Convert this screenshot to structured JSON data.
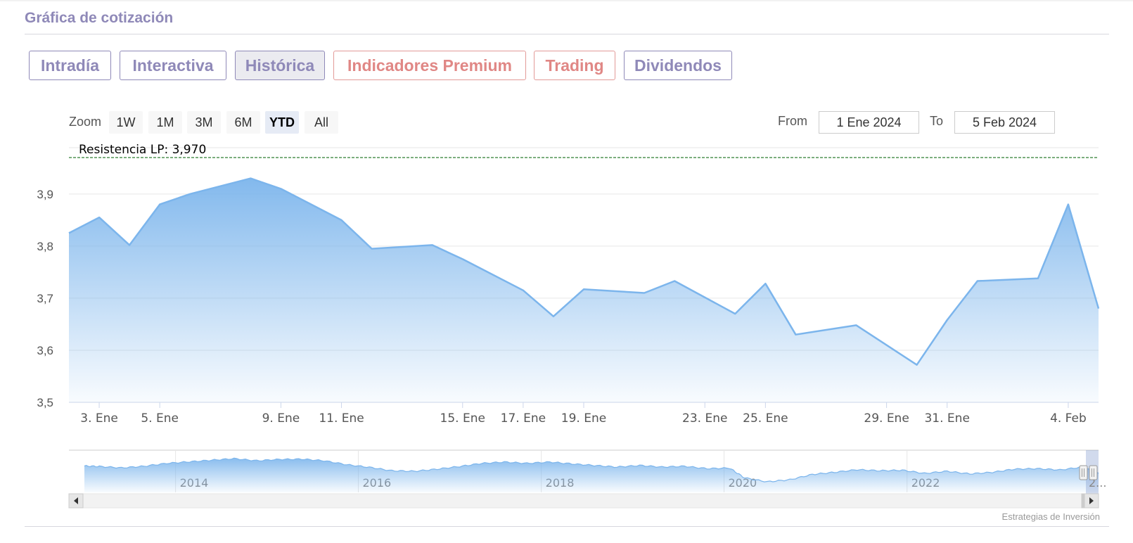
{
  "section_title": "Gráfica de cotización",
  "tabs": [
    {
      "label": "Intradía",
      "premium": false,
      "active": false
    },
    {
      "label": "Interactiva",
      "premium": false,
      "active": false
    },
    {
      "label": "Histórica",
      "premium": false,
      "active": true
    },
    {
      "label": "Indicadores Premium",
      "premium": true,
      "active": false
    },
    {
      "label": "Trading",
      "premium": true,
      "active": false
    },
    {
      "label": "Dividendos",
      "premium": false,
      "active": false
    }
  ],
  "zoom": {
    "label": "Zoom",
    "buttons": [
      "1W",
      "1M",
      "3M",
      "6M",
      "YTD",
      "All"
    ],
    "selected": "YTD"
  },
  "range": {
    "from_label": "From",
    "from_value": "1 Ene 2024",
    "to_label": "To",
    "to_value": "5 Feb 2024"
  },
  "credits": "Estrategias de Inversión",
  "colors": {
    "series": "#7cb5ec",
    "resistance": "#2e7d32",
    "tab_text": "#8f89b8",
    "premium_text": "#e08785"
  },
  "chart_data": {
    "type": "area",
    "y_ticks": [
      "3,5",
      "3,6",
      "3,7",
      "3,8",
      "3,9"
    ],
    "ylim": [
      3.5,
      3.97
    ],
    "x_start": "2024-01-02",
    "x_end": "2024-02-05",
    "x_ticks": [
      {
        "date": "2024-01-03",
        "label": "3. Ene"
      },
      {
        "date": "2024-01-05",
        "label": "5. Ene"
      },
      {
        "date": "2024-01-09",
        "label": "9. Ene"
      },
      {
        "date": "2024-01-11",
        "label": "11. Ene"
      },
      {
        "date": "2024-01-15",
        "label": "15. Ene"
      },
      {
        "date": "2024-01-17",
        "label": "17. Ene"
      },
      {
        "date": "2024-01-19",
        "label": "19. Ene"
      },
      {
        "date": "2024-01-23",
        "label": "23. Ene"
      },
      {
        "date": "2024-01-25",
        "label": "25. Ene"
      },
      {
        "date": "2024-01-29",
        "label": "29. Ene"
      },
      {
        "date": "2024-01-31",
        "label": "31. Ene"
      },
      {
        "date": "2024-02-04",
        "label": "4. Feb"
      }
    ],
    "series": [
      {
        "points": [
          {
            "date": "2024-01-02",
            "value": 3.825
          },
          {
            "date": "2024-01-03",
            "value": 3.855
          },
          {
            "date": "2024-01-04",
            "value": 3.802
          },
          {
            "date": "2024-01-05",
            "value": 3.88
          },
          {
            "date": "2024-01-06",
            "value": 3.9
          },
          {
            "date": "2024-01-07",
            "value": 3.915
          },
          {
            "date": "2024-01-08",
            "value": 3.93
          },
          {
            "date": "2024-01-09",
            "value": 3.91
          },
          {
            "date": "2024-01-10",
            "value": 3.88
          },
          {
            "date": "2024-01-11",
            "value": 3.85
          },
          {
            "date": "2024-01-12",
            "value": 3.795
          },
          {
            "date": "2024-01-14",
            "value": 3.802
          },
          {
            "date": "2024-01-15",
            "value": 3.775
          },
          {
            "date": "2024-01-17",
            "value": 3.715
          },
          {
            "date": "2024-01-18",
            "value": 3.665
          },
          {
            "date": "2024-01-19",
            "value": 3.717
          },
          {
            "date": "2024-01-21",
            "value": 3.71
          },
          {
            "date": "2024-01-22",
            "value": 3.733
          },
          {
            "date": "2024-01-24",
            "value": 3.67
          },
          {
            "date": "2024-01-25",
            "value": 3.728
          },
          {
            "date": "2024-01-26",
            "value": 3.63
          },
          {
            "date": "2024-01-28",
            "value": 3.648
          },
          {
            "date": "2024-01-30",
            "value": 3.572
          },
          {
            "date": "2024-01-31",
            "value": 3.658
          },
          {
            "date": "2024-02-01",
            "value": 3.733
          },
          {
            "date": "2024-02-03",
            "value": 3.738
          },
          {
            "date": "2024-02-04",
            "value": 3.88
          },
          {
            "date": "2024-02-05",
            "value": 3.68
          }
        ]
      }
    ],
    "plot_lines": [
      {
        "label": "Resistencia LP: 3,970",
        "value": 3.97
      }
    ],
    "navigator": {
      "x_start": "2012-11-01",
      "x_end": "2024-02-05",
      "ticks": [
        "2014",
        "2016",
        "2018",
        "2020",
        "2022"
      ],
      "tick_dates": [
        "2014-01-01",
        "2016-01-01",
        "2018-01-01",
        "2020-01-01",
        "2022-01-01"
      ],
      "edge_label": "2...",
      "ylim": [
        3.0,
        4.6
      ],
      "points": [
        {
          "date": "2012-11-01",
          "value": 4.0
        },
        {
          "date": "2013-01-01",
          "value": 3.98
        },
        {
          "date": "2013-04-01",
          "value": 3.93
        },
        {
          "date": "2013-07-01",
          "value": 3.99
        },
        {
          "date": "2013-10-01",
          "value": 4.1
        },
        {
          "date": "2014-01-01",
          "value": 4.16
        },
        {
          "date": "2014-04-01",
          "value": 4.22
        },
        {
          "date": "2014-07-01",
          "value": 4.28
        },
        {
          "date": "2014-10-01",
          "value": 4.2
        },
        {
          "date": "2015-01-01",
          "value": 4.25
        },
        {
          "date": "2015-04-01",
          "value": 4.26
        },
        {
          "date": "2015-07-01",
          "value": 4.2
        },
        {
          "date": "2015-10-01",
          "value": 4.05
        },
        {
          "date": "2016-01-01",
          "value": 3.95
        },
        {
          "date": "2016-04-01",
          "value": 3.82
        },
        {
          "date": "2016-07-01",
          "value": 3.8
        },
        {
          "date": "2016-10-01",
          "value": 3.88
        },
        {
          "date": "2017-01-01",
          "value": 3.98
        },
        {
          "date": "2017-04-01",
          "value": 4.1
        },
        {
          "date": "2017-07-01",
          "value": 4.15
        },
        {
          "date": "2017-10-01",
          "value": 4.1
        },
        {
          "date": "2018-01-01",
          "value": 4.15
        },
        {
          "date": "2018-04-01",
          "value": 4.08
        },
        {
          "date": "2018-07-01",
          "value": 4.02
        },
        {
          "date": "2018-10-01",
          "value": 3.96
        },
        {
          "date": "2019-01-01",
          "value": 4.02
        },
        {
          "date": "2019-04-01",
          "value": 3.96
        },
        {
          "date": "2019-07-01",
          "value": 3.99
        },
        {
          "date": "2019-10-01",
          "value": 3.9
        },
        {
          "date": "2020-01-01",
          "value": 3.92
        },
        {
          "date": "2020-03-01",
          "value": 3.55
        },
        {
          "date": "2020-06-01",
          "value": 3.4
        },
        {
          "date": "2020-09-01",
          "value": 3.48
        },
        {
          "date": "2020-12-01",
          "value": 3.68
        },
        {
          "date": "2021-03-01",
          "value": 3.76
        },
        {
          "date": "2021-06-01",
          "value": 3.86
        },
        {
          "date": "2021-09-01",
          "value": 3.82
        },
        {
          "date": "2021-12-01",
          "value": 3.84
        },
        {
          "date": "2022-03-01",
          "value": 3.72
        },
        {
          "date": "2022-06-01",
          "value": 3.8
        },
        {
          "date": "2022-09-01",
          "value": 3.7
        },
        {
          "date": "2022-12-01",
          "value": 3.76
        },
        {
          "date": "2023-03-01",
          "value": 3.88
        },
        {
          "date": "2023-06-01",
          "value": 3.9
        },
        {
          "date": "2023-09-01",
          "value": 3.85
        },
        {
          "date": "2023-12-01",
          "value": 3.96
        },
        {
          "date": "2024-02-05",
          "value": 3.72
        }
      ]
    }
  }
}
